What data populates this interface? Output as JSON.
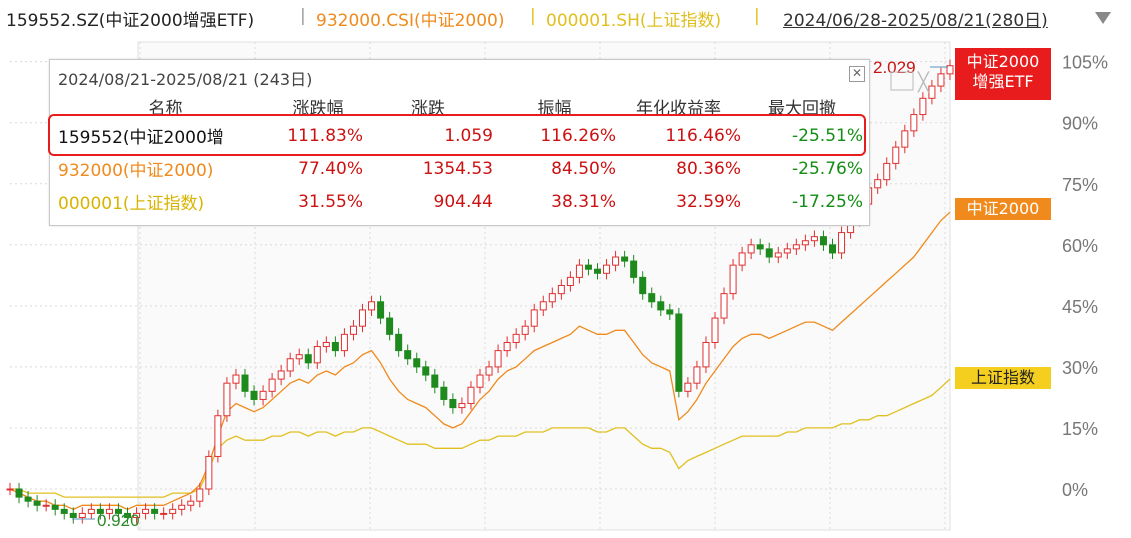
{
  "header": {
    "etf_code": "159552.SZ(中证2000增强ETF)",
    "sep1": "|",
    "index_code": "932000.CSI(中证2000)",
    "sep2": "|",
    "sh_code": "000001.SH(上证指数)",
    "sep3": "|",
    "date_range": "2024/06/28-2025/08/21(280日)"
  },
  "colors": {
    "etf": "#c0392b",
    "csi": "#f08a1c",
    "sh": "#e0c020",
    "up": "#e03030",
    "down": "#1e8a1e",
    "grid": "#d9d9d9",
    "table_red": "#cc1111",
    "table_green": "#138d13",
    "highlight": "#e81c1c"
  },
  "summary_table": {
    "title": "2024/08/21-2025/08/21 (243日)",
    "columns": [
      "名称",
      "涨跌幅",
      "涨跌",
      "振幅",
      "年化收益率",
      "最大回撤"
    ],
    "rows": [
      {
        "name": "159552(中证2000增",
        "change_pct": "111.83%",
        "change": "1.059",
        "amplitude": "116.26%",
        "annualized": "116.46%",
        "max_drawdown": "-25.51%"
      },
      {
        "name": "932000(中证2000)",
        "change_pct": "77.40%",
        "change": "1354.53",
        "amplitude": "84.50%",
        "annualized": "80.36%",
        "max_drawdown": "-25.76%"
      },
      {
        "name": "000001(上证指数)",
        "change_pct": "31.55%",
        "change": "904.44",
        "amplitude": "38.31%",
        "annualized": "32.59%",
        "max_drawdown": "-17.25%"
      }
    ]
  },
  "chart_data": {
    "type": "line",
    "x_range": [
      "2024/06/28",
      "2025/08/21"
    ],
    "trading_days": 280,
    "y_ticks": [
      "105%",
      "90%",
      "75%",
      "60%",
      "45%",
      "30%",
      "15%",
      "0%"
    ],
    "ylim": [
      -9,
      108
    ],
    "annotations": {
      "etf_high": "2.029",
      "etf_low": "0.920"
    },
    "series": [
      {
        "name": "中证2000增强ETF",
        "style": "candlestick",
        "label": "中证2000\n增强ETF",
        "values": [
          0,
          -2,
          -3,
          -4,
          -4,
          -5,
          -6,
          -7,
          -6,
          -5,
          -6,
          -5,
          -6,
          -7,
          -6,
          -5,
          -6,
          -6,
          -5,
          -4,
          -3,
          0,
          8,
          18,
          26,
          28,
          24,
          22,
          24,
          27,
          29,
          32,
          33,
          31,
          35,
          36,
          34,
          38,
          40,
          44,
          46,
          42,
          38,
          34,
          32,
          30,
          28,
          25,
          22,
          20,
          21,
          25,
          28,
          30,
          34,
          36,
          38,
          40,
          44,
          46,
          48,
          50,
          52,
          55,
          54,
          53,
          55,
          57,
          56,
          52,
          48,
          46,
          44,
          43,
          24,
          26,
          30,
          36,
          42,
          48,
          55,
          58,
          60,
          59,
          57,
          58,
          59,
          60,
          61,
          62,
          60,
          58,
          63,
          66,
          70,
          74,
          76,
          80,
          84,
          88,
          92,
          96,
          99,
          102,
          104
        ]
      },
      {
        "name": "中证2000",
        "style": "line",
        "label": "中证2000",
        "values": [
          0,
          -1,
          -2,
          -3,
          -3,
          -4,
          -4,
          -5,
          -4,
          -4,
          -4,
          -4,
          -4,
          -5,
          -4,
          -4,
          -4,
          -4,
          -3,
          -2,
          -1,
          1,
          6,
          13,
          19,
          21,
          20,
          19,
          20,
          22,
          24,
          26,
          27,
          26,
          28,
          29,
          28,
          30,
          31,
          33,
          34,
          31,
          27,
          24,
          22,
          21,
          20,
          18,
          16,
          15,
          16,
          19,
          22,
          24,
          27,
          29,
          30,
          32,
          34,
          35,
          36,
          37,
          38,
          40,
          39,
          38,
          38,
          39,
          39,
          36,
          33,
          31,
          30,
          29,
          17,
          19,
          22,
          26,
          29,
          32,
          35,
          37,
          38,
          38,
          37,
          38,
          39,
          40,
          41,
          41,
          40,
          39,
          41,
          43,
          45,
          47,
          49,
          51,
          53,
          55,
          57,
          60,
          63,
          66,
          68
        ]
      },
      {
        "name": "上证指数",
        "style": "line",
        "label": "上证指数",
        "values": [
          0,
          0,
          -1,
          -1,
          -1,
          -1,
          -2,
          -2,
          -2,
          -2,
          -2,
          -2,
          -2,
          -2,
          -2,
          -2,
          -2,
          -2,
          -1,
          -1,
          -1,
          0,
          5,
          10,
          12,
          13,
          12,
          12,
          12,
          13,
          13,
          14,
          14,
          13,
          14,
          14,
          13,
          14,
          14,
          15,
          15,
          14,
          13,
          12,
          11,
          11,
          11,
          10,
          10,
          10,
          10,
          11,
          12,
          12,
          13,
          13,
          13,
          14,
          14,
          14,
          15,
          15,
          15,
          15,
          15,
          14,
          14,
          15,
          15,
          13,
          11,
          10,
          10,
          9,
          5,
          7,
          8,
          9,
          10,
          11,
          12,
          13,
          13,
          13,
          13,
          13,
          14,
          14,
          15,
          15,
          15,
          15,
          16,
          16,
          17,
          17,
          18,
          18,
          19,
          20,
          21,
          22,
          23,
          25,
          27
        ]
      }
    ]
  }
}
